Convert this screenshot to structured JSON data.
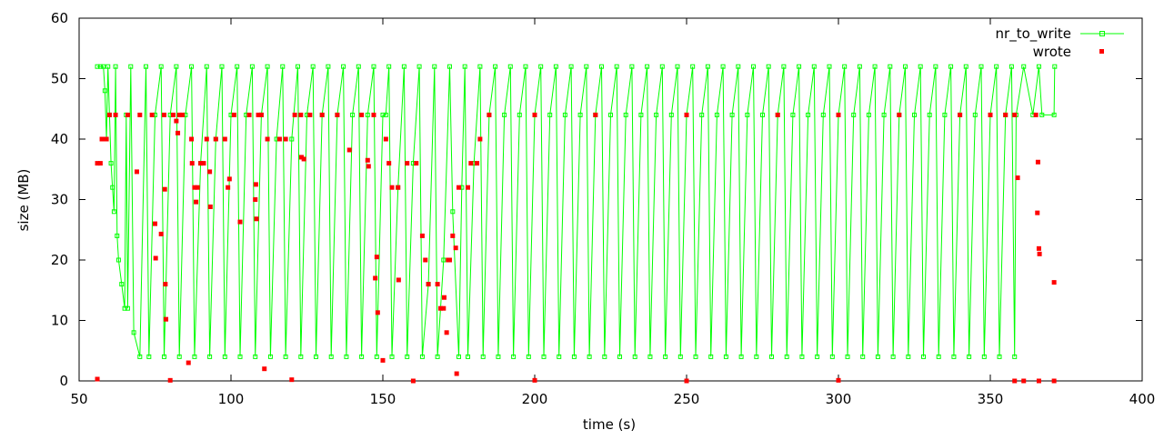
{
  "chart_data": {
    "type": "scatter",
    "xlabel": "time (s)",
    "ylabel": "size (MB)",
    "xlim": [
      50,
      400
    ],
    "ylim": [
      0,
      60
    ],
    "xticks": [
      50,
      100,
      150,
      200,
      250,
      300,
      350,
      400
    ],
    "yticks": [
      0,
      10,
      20,
      30,
      40,
      50,
      60
    ],
    "xtick_labels": [
      "50",
      "100",
      "150",
      "200",
      "250",
      "300",
      "350",
      "400"
    ],
    "ytick_labels": [
      "0",
      "10",
      "20",
      "30",
      "40",
      "50",
      "60"
    ],
    "legend_position": "top-right",
    "series": [
      {
        "name": "nr_to_write",
        "color": "#00ff00",
        "style": "linespoints",
        "points": [
          [
            56,
            52
          ],
          [
            57,
            52
          ],
          [
            58,
            52
          ],
          [
            58.5,
            48
          ],
          [
            59,
            40
          ],
          [
            59.5,
            52
          ],
          [
            60,
            44
          ],
          [
            60.5,
            36
          ],
          [
            61,
            32
          ],
          [
            61.5,
            28
          ],
          [
            62,
            52
          ],
          [
            62.5,
            24
          ],
          [
            63,
            20
          ],
          [
            64,
            16
          ],
          [
            65,
            12
          ],
          [
            65.5,
            44
          ],
          [
            66,
            12
          ],
          [
            67,
            52
          ],
          [
            68,
            8
          ],
          [
            70,
            4
          ],
          [
            72,
            52
          ],
          [
            73,
            4
          ],
          [
            75,
            44
          ],
          [
            77,
            52
          ],
          [
            78,
            4
          ],
          [
            80,
            44
          ],
          [
            82,
            52
          ],
          [
            83,
            4
          ],
          [
            85,
            44
          ],
          [
            87,
            52
          ],
          [
            88,
            4
          ],
          [
            90,
            36
          ],
          [
            92,
            52
          ],
          [
            93,
            4
          ],
          [
            95,
            40
          ],
          [
            97,
            52
          ],
          [
            98,
            4
          ],
          [
            100,
            44
          ],
          [
            102,
            52
          ],
          [
            103,
            4
          ],
          [
            105,
            44
          ],
          [
            107,
            52
          ],
          [
            108,
            4
          ],
          [
            110,
            44
          ],
          [
            112,
            52
          ],
          [
            113,
            4
          ],
          [
            115,
            40
          ],
          [
            117,
            52
          ],
          [
            118,
            4
          ],
          [
            120,
            40
          ],
          [
            122,
            52
          ],
          [
            123,
            4
          ],
          [
            125,
            44
          ],
          [
            127,
            52
          ],
          [
            128,
            4
          ],
          [
            130,
            44
          ],
          [
            132,
            52
          ],
          [
            133,
            4
          ],
          [
            135,
            44
          ],
          [
            137,
            52
          ],
          [
            138,
            4
          ],
          [
            140,
            44
          ],
          [
            142,
            52
          ],
          [
            143,
            4
          ],
          [
            145,
            44
          ],
          [
            147,
            52
          ],
          [
            148,
            4
          ],
          [
            150,
            44
          ],
          [
            151,
            44
          ],
          [
            152,
            52
          ],
          [
            153,
            4
          ],
          [
            155,
            32
          ],
          [
            157,
            52
          ],
          [
            158,
            4
          ],
          [
            160,
            36
          ],
          [
            162,
            52
          ],
          [
            163,
            4
          ],
          [
            165,
            16
          ],
          [
            167,
            52
          ],
          [
            168,
            4
          ],
          [
            170,
            20
          ],
          [
            172,
            52
          ],
          [
            173,
            28
          ],
          [
            175,
            4
          ],
          [
            176,
            32
          ],
          [
            177,
            52
          ],
          [
            178,
            4
          ],
          [
            180,
            36
          ],
          [
            182,
            52
          ],
          [
            183,
            4
          ],
          [
            185,
            44
          ],
          [
            187,
            52
          ],
          [
            188,
            4
          ],
          [
            190,
            44
          ],
          [
            192,
            52
          ],
          [
            193,
            4
          ],
          [
            195,
            44
          ],
          [
            197,
            52
          ],
          [
            198,
            4
          ],
          [
            200,
            44
          ],
          [
            202,
            52
          ],
          [
            203,
            4
          ],
          [
            205,
            44
          ],
          [
            207,
            52
          ],
          [
            208,
            4
          ],
          [
            210,
            44
          ],
          [
            212,
            52
          ],
          [
            213,
            4
          ],
          [
            215,
            44
          ],
          [
            217,
            52
          ],
          [
            218,
            4
          ],
          [
            220,
            44
          ],
          [
            222,
            52
          ],
          [
            223,
            4
          ],
          [
            225,
            44
          ],
          [
            227,
            52
          ],
          [
            228,
            4
          ],
          [
            230,
            44
          ],
          [
            232,
            52
          ],
          [
            233,
            4
          ],
          [
            235,
            44
          ],
          [
            237,
            52
          ],
          [
            238,
            4
          ],
          [
            240,
            44
          ],
          [
            242,
            52
          ],
          [
            243,
            4
          ],
          [
            245,
            44
          ],
          [
            247,
            52
          ],
          [
            248,
            4
          ],
          [
            250,
            44
          ],
          [
            252,
            52
          ],
          [
            253,
            4
          ],
          [
            255,
            44
          ],
          [
            257,
            52
          ],
          [
            258,
            4
          ],
          [
            260,
            44
          ],
          [
            262,
            52
          ],
          [
            263,
            4
          ],
          [
            265,
            44
          ],
          [
            267,
            52
          ],
          [
            268,
            4
          ],
          [
            270,
            44
          ],
          [
            272,
            52
          ],
          [
            273,
            4
          ],
          [
            275,
            44
          ],
          [
            277,
            52
          ],
          [
            278,
            4
          ],
          [
            280,
            44
          ],
          [
            282,
            52
          ],
          [
            283,
            4
          ],
          [
            285,
            44
          ],
          [
            287,
            52
          ],
          [
            288,
            4
          ],
          [
            290,
            44
          ],
          [
            292,
            52
          ],
          [
            293,
            4
          ],
          [
            295,
            44
          ],
          [
            297,
            52
          ],
          [
            298,
            4
          ],
          [
            300,
            44
          ],
          [
            302,
            52
          ],
          [
            303,
            4
          ],
          [
            305,
            44
          ],
          [
            307,
            52
          ],
          [
            308,
            4
          ],
          [
            310,
            44
          ],
          [
            312,
            52
          ],
          [
            313,
            4
          ],
          [
            315,
            44
          ],
          [
            317,
            52
          ],
          [
            318,
            4
          ],
          [
            320,
            44
          ],
          [
            322,
            52
          ],
          [
            323,
            4
          ],
          [
            325,
            44
          ],
          [
            327,
            52
          ],
          [
            328,
            4
          ],
          [
            330,
            44
          ],
          [
            332,
            52
          ],
          [
            333,
            4
          ],
          [
            335,
            44
          ],
          [
            337,
            52
          ],
          [
            338,
            4
          ],
          [
            340,
            44
          ],
          [
            342,
            52
          ],
          [
            343,
            4
          ],
          [
            345,
            44
          ],
          [
            347,
            52
          ],
          [
            348,
            4
          ],
          [
            350,
            44
          ],
          [
            352,
            52
          ],
          [
            353,
            4
          ],
          [
            355,
            44
          ],
          [
            357,
            52
          ],
          [
            358,
            4
          ],
          [
            358.5,
            44
          ],
          [
            361,
            52
          ],
          [
            364,
            44
          ],
          [
            366,
            52
          ],
          [
            367,
            44
          ],
          [
            371,
            44
          ],
          [
            371.2,
            52
          ]
        ]
      },
      {
        "name": "wrote",
        "color": "#ff0000",
        "style": "points",
        "points": [
          [
            56,
            36
          ],
          [
            57,
            36
          ],
          [
            57.5,
            40
          ],
          [
            58,
            40
          ],
          [
            59,
            40
          ],
          [
            60,
            44
          ],
          [
            62,
            44
          ],
          [
            66,
            44
          ],
          [
            69,
            34.6
          ],
          [
            70,
            44
          ],
          [
            74,
            44
          ],
          [
            75,
            26
          ],
          [
            75.2,
            20.3
          ],
          [
            77,
            24.3
          ],
          [
            78,
            44
          ],
          [
            78.2,
            31.7
          ],
          [
            78.4,
            16
          ],
          [
            78.6,
            10.2
          ],
          [
            81,
            44
          ],
          [
            82,
            43
          ],
          [
            82.5,
            41
          ],
          [
            83,
            44
          ],
          [
            84,
            44
          ],
          [
            86,
            3
          ],
          [
            87,
            40
          ],
          [
            87.2,
            36
          ],
          [
            88,
            32
          ],
          [
            88.5,
            29.6
          ],
          [
            89,
            32
          ],
          [
            90,
            36
          ],
          [
            91,
            36
          ],
          [
            92,
            40
          ],
          [
            93,
            34.6
          ],
          [
            93.2,
            28.8
          ],
          [
            95,
            40
          ],
          [
            98,
            40
          ],
          [
            99,
            32
          ],
          [
            99.5,
            33.4
          ],
          [
            101,
            44
          ],
          [
            103,
            26.3
          ],
          [
            106,
            44
          ],
          [
            108,
            30
          ],
          [
            108.2,
            32.5
          ],
          [
            108.4,
            26.8
          ],
          [
            109,
            44
          ],
          [
            110,
            44
          ],
          [
            111,
            2
          ],
          [
            112,
            40
          ],
          [
            116,
            40
          ],
          [
            118,
            40
          ],
          [
            121,
            44
          ],
          [
            123,
            44
          ],
          [
            123.2,
            37
          ],
          [
            124,
            36.7
          ],
          [
            126,
            44
          ],
          [
            130,
            44
          ],
          [
            135,
            44
          ],
          [
            139,
            38.2
          ],
          [
            143,
            44
          ],
          [
            145,
            36.5
          ],
          [
            145.3,
            35.5
          ],
          [
            147,
            44
          ],
          [
            147.5,
            17
          ],
          [
            148,
            20.5
          ],
          [
            148.3,
            11.3
          ],
          [
            150,
            3.4
          ],
          [
            151,
            40
          ],
          [
            152,
            36
          ],
          [
            153,
            32
          ],
          [
            155,
            32
          ],
          [
            155.2,
            16.7
          ],
          [
            158,
            36
          ],
          [
            161,
            36
          ],
          [
            163,
            24
          ],
          [
            164,
            20
          ],
          [
            165,
            16
          ],
          [
            168,
            16
          ],
          [
            169,
            12
          ],
          [
            170,
            12
          ],
          [
            170.2,
            13.8
          ],
          [
            171,
            8
          ],
          [
            171.5,
            20
          ],
          [
            172,
            20
          ],
          [
            173,
            24
          ],
          [
            174,
            22
          ],
          [
            174.3,
            1.2
          ],
          [
            175,
            32
          ],
          [
            178,
            32
          ],
          [
            179,
            36
          ],
          [
            181,
            36
          ],
          [
            182,
            40
          ],
          [
            185,
            44
          ],
          [
            200,
            44
          ],
          [
            220,
            44
          ],
          [
            250,
            44
          ],
          [
            280,
            44
          ],
          [
            300,
            44
          ],
          [
            320,
            44
          ],
          [
            340,
            44
          ],
          [
            350,
            44
          ],
          [
            355,
            44
          ],
          [
            358,
            44
          ],
          [
            359,
            33.6
          ],
          [
            365,
            44
          ],
          [
            365.5,
            27.8
          ],
          [
            365.7,
            36.2
          ],
          [
            366,
            21.9
          ],
          [
            366.2,
            21
          ],
          [
            371,
            16.3
          ],
          [
            56,
            0.3
          ],
          [
            80,
            0.1
          ],
          [
            120,
            0.2
          ],
          [
            160,
            0
          ],
          [
            200,
            0.1
          ],
          [
            250,
            0
          ],
          [
            300,
            0.1
          ],
          [
            358,
            0
          ],
          [
            361,
            0
          ],
          [
            366,
            0
          ],
          [
            371,
            0
          ]
        ]
      }
    ]
  }
}
